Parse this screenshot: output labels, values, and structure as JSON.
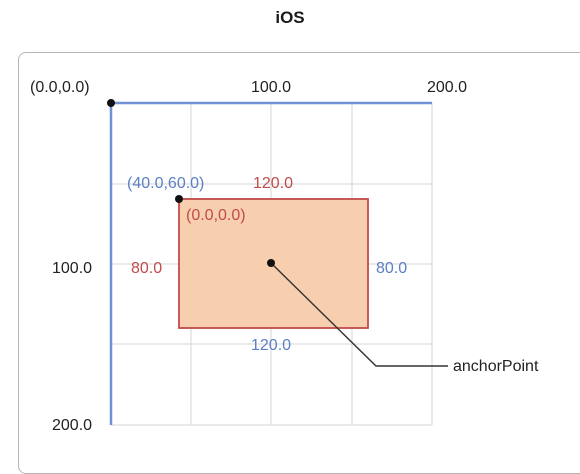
{
  "title": "iOS",
  "axes": {
    "origin_label": "(0.0,0.0)",
    "x_ticks": [
      "100.0",
      "200.0"
    ],
    "y_ticks": [
      "100.0",
      "200.0"
    ]
  },
  "layer": {
    "frame_origin_label": "(40.0,60.0)",
    "bounds_origin_label": "(0.0,0.0)",
    "top_width_label": "120.0",
    "bottom_width_label": "120.0",
    "left_height_label": "80.0",
    "right_height_label": "80.0",
    "anchor_label": "anchorPoint"
  },
  "colors": {
    "superlayer_border": "#6f93d2",
    "layer_fill": "#f7cfae",
    "layer_border": "#c24b4b",
    "blue_text": "#5b7fc4",
    "red_text": "#c24b4b",
    "grid": "#dddddd"
  }
}
